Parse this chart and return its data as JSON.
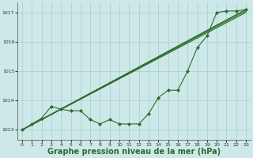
{
  "background_color": "#cce8e8",
  "grid_color": "#aacccc",
  "line_color": "#2d6b2d",
  "marker_color": "#2d6b2d",
  "xlabel": "Graphe pression niveau de la mer (hPa)",
  "xlabel_fontsize": 7,
  "ylabel_ticks": [
    1013,
    1014,
    1015,
    1016,
    1017
  ],
  "xlim": [
    -0.5,
    23.5
  ],
  "ylim": [
    1012.65,
    1017.35
  ],
  "xticks": [
    0,
    1,
    2,
    3,
    4,
    5,
    6,
    7,
    8,
    9,
    10,
    11,
    12,
    13,
    14,
    15,
    16,
    17,
    18,
    19,
    20,
    21,
    22,
    23
  ],
  "data_x": [
    0,
    1,
    2,
    3,
    4,
    5,
    6,
    7,
    8,
    9,
    10,
    11,
    12,
    13,
    14,
    15,
    16,
    17,
    18,
    19,
    20,
    21,
    22,
    23
  ],
  "data_y": [
    1013.0,
    1013.2,
    1013.4,
    1013.8,
    1013.7,
    1013.65,
    1013.65,
    1013.35,
    1013.2,
    1013.35,
    1013.2,
    1013.2,
    1013.2,
    1013.55,
    1014.1,
    1014.35,
    1014.35,
    1015.0,
    1015.8,
    1016.2,
    1017.0,
    1017.05,
    1017.05,
    1017.1
  ],
  "ref_lines": [
    {
      "x0": 0,
      "y0": 1013.0,
      "x1": 23,
      "y1": 1017.1
    },
    {
      "x0": 0,
      "y0": 1013.0,
      "x1": 23,
      "y1": 1017.1
    },
    {
      "x0": 0,
      "y0": 1013.0,
      "x1": 23,
      "y1": 1017.05
    },
    {
      "x0": 0,
      "y0": 1013.0,
      "x1": 23,
      "y1": 1017.0
    }
  ]
}
